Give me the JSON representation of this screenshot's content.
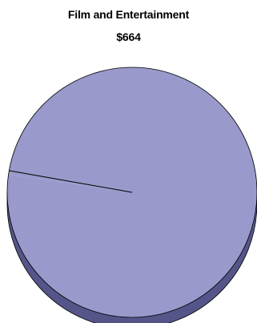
{
  "chart_data": {
    "type": "pie",
    "title": "Film and Entertainment",
    "subtitle": "$664",
    "slices": [
      {
        "label": "",
        "value": 99.5,
        "color": "#9999cc"
      },
      {
        "label": "",
        "value": 0.5,
        "color": "#9999cc"
      }
    ],
    "style": "3d",
    "side_color": "#55558a",
    "outline_color": "#000000"
  }
}
